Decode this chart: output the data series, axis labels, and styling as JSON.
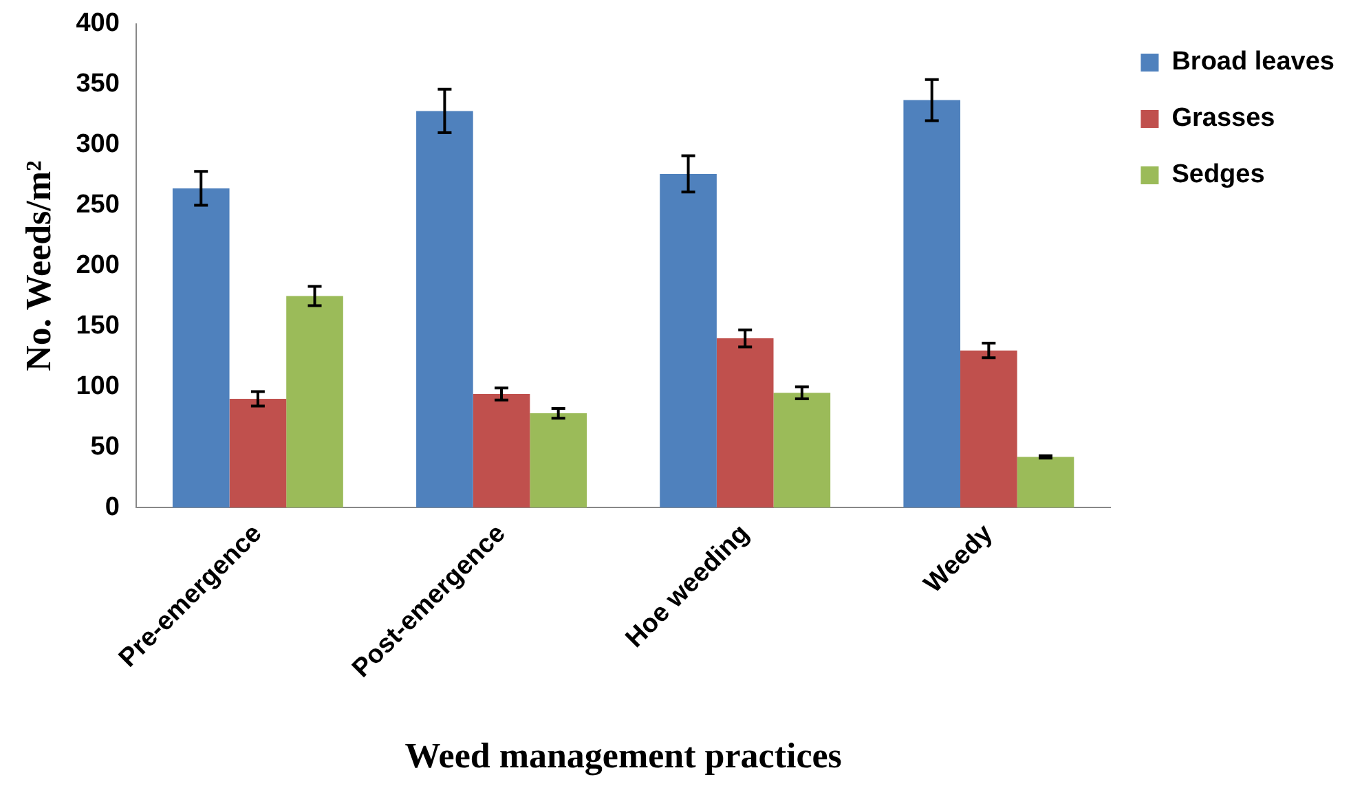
{
  "chart_data": {
    "type": "bar",
    "xlabel": "Weed management practices",
    "ylabel": "No. Weeds/m²",
    "categories": [
      "Pre-emergence",
      "Post-emergence",
      "Hoe weeding",
      "Weedy"
    ],
    "series": [
      {
        "name": "Broad leaves",
        "color": "#4f81bd",
        "values": [
          264,
          328,
          276,
          337
        ],
        "errors": [
          14,
          18,
          15,
          17
        ]
      },
      {
        "name": "Grasses",
        "color": "#c0504d",
        "values": [
          90,
          94,
          140,
          130
        ],
        "errors": [
          6,
          5,
          7,
          6
        ]
      },
      {
        "name": "Sedges",
        "color": "#9bbb59",
        "values": [
          175,
          78,
          95,
          42
        ],
        "errors": [
          8,
          4,
          5,
          1
        ]
      }
    ],
    "ylim": [
      0,
      400
    ],
    "yticks": [
      0,
      50,
      100,
      150,
      200,
      250,
      300,
      350,
      400
    ],
    "grid": false,
    "legend": "right"
  }
}
